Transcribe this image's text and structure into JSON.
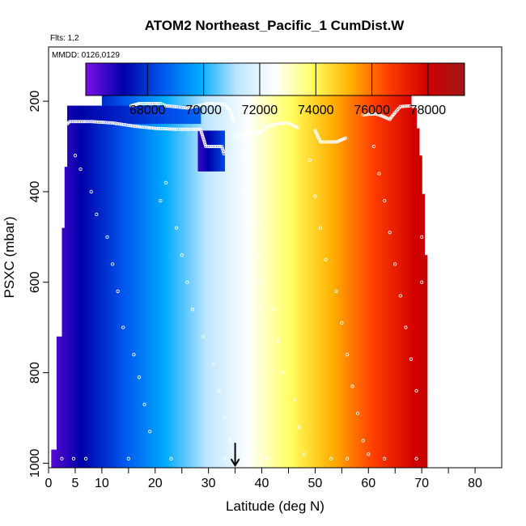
{
  "chart_data": {
    "type": "heatmap",
    "title": "ATOM2 Northeast_Pacific_1 CumDist.W",
    "flights_label": "Flts: 1,2",
    "date_label": "MMDD: 0126,0129",
    "xlabel": "Latitude (deg N)",
    "ylabel": "PSXC (mbar)",
    "xlim": [
      0,
      85
    ],
    "ylim": [
      1010,
      80
    ],
    "y_reversed": true,
    "x_ticks": [
      0,
      5,
      10,
      20,
      30,
      40,
      50,
      60,
      70,
      80
    ],
    "x_minor_ticks": [
      15,
      25,
      35,
      45,
      55,
      65,
      75
    ],
    "y_ticks": [
      200,
      400,
      600,
      800,
      1000
    ],
    "colorbar": {
      "range": [
        65800,
        79300
      ],
      "ticks": [
        68000,
        70000,
        72000,
        74000,
        76000,
        78000
      ],
      "palette": [
        "#7b10e8",
        "#0000a8",
        "#0055ee",
        "#00aaff",
        "#bfe6ff",
        "#ffffff",
        "#ffff60",
        "#ffb000",
        "#ff3c00",
        "#d00000",
        "#a01818"
      ]
    },
    "field": {
      "description": "CumDist.W colored by latitude",
      "lat_start": 0.5,
      "lat_end": 71,
      "value_at_lat_start": 66200,
      "value_per_deg": 172,
      "column_profile": [
        [
          0.5,
          970,
          1010
        ],
        [
          1.5,
          720,
          1010
        ],
        [
          2.5,
          480,
          1010
        ],
        [
          3.0,
          345,
          1010
        ],
        [
          3.5,
          210,
          1010
        ],
        [
          10,
          175,
          1010
        ],
        [
          67.5,
          175,
          1010
        ],
        [
          68,
          215,
          1010
        ],
        [
          69,
          260,
          1010
        ],
        [
          69.5,
          320,
          1010
        ],
        [
          70,
          405,
          1010
        ],
        [
          70.5,
          540,
          1010
        ],
        [
          71,
          900,
          1010
        ]
      ],
      "anomaly_rect": {
        "lat": [
          3.5,
          28.5
        ],
        "p": [
          210,
          250
        ],
        "value": 67000
      },
      "anomaly_rect2": {
        "lat": [
          28,
          33
        ],
        "p": [
          265,
          355
        ],
        "value": 66500
      }
    },
    "flight_tracks": [
      [
        [
          3.5,
          250
        ],
        [
          4,
          245
        ],
        [
          8,
          245
        ],
        [
          12,
          248
        ],
        [
          16,
          255
        ],
        [
          20,
          260
        ],
        [
          24,
          262
        ],
        [
          27.5,
          262
        ],
        [
          28.5,
          262
        ],
        [
          29.5,
          300
        ],
        [
          32.5,
          300
        ],
        [
          33,
          320
        ]
      ],
      [
        [
          15.5,
          210
        ],
        [
          17,
          205
        ],
        [
          21,
          205
        ],
        [
          22,
          210
        ],
        [
          26,
          215
        ],
        [
          28,
          210
        ],
        [
          30,
          205
        ],
        [
          33,
          207
        ],
        [
          34,
          220
        ],
        [
          35,
          250
        ]
      ],
      [
        [
          35,
          280
        ],
        [
          36,
          275
        ],
        [
          38,
          273
        ],
        [
          40,
          268
        ],
        [
          41,
          255
        ],
        [
          43,
          250
        ],
        [
          45,
          248
        ],
        [
          47,
          260
        ]
      ],
      [
        [
          50,
          265
        ],
        [
          51,
          290
        ],
        [
          54,
          290
        ],
        [
          56,
          280
        ]
      ],
      [
        [
          59,
          230
        ],
        [
          61,
          228
        ],
        [
          62,
          230
        ],
        [
          64,
          240
        ],
        [
          65,
          225
        ],
        [
          66,
          212
        ],
        [
          68,
          210
        ]
      ]
    ],
    "scatter_points": [
      [
        2.5,
        990
      ],
      [
        4.7,
        990
      ],
      [
        7.0,
        990
      ],
      [
        15.0,
        990
      ],
      [
        23,
        990
      ],
      [
        33,
        990
      ],
      [
        41,
        990
      ],
      [
        53,
        990
      ],
      [
        56,
        990
      ],
      [
        63,
        990
      ],
      [
        69,
        990
      ],
      [
        5,
        320
      ],
      [
        6,
        350
      ],
      [
        8,
        400
      ],
      [
        9,
        450
      ],
      [
        11,
        500
      ],
      [
        12,
        560
      ],
      [
        13,
        620
      ],
      [
        14,
        700
      ],
      [
        16,
        760
      ],
      [
        17,
        810
      ],
      [
        18,
        870
      ],
      [
        19,
        930
      ],
      [
        21,
        420
      ],
      [
        22,
        380
      ],
      [
        24,
        480
      ],
      [
        25,
        540
      ],
      [
        26,
        600
      ],
      [
        27,
        660
      ],
      [
        29,
        720
      ],
      [
        31,
        780
      ],
      [
        32,
        840
      ],
      [
        33,
        900
      ],
      [
        34,
        950
      ],
      [
        36,
        320
      ],
      [
        37,
        400
      ],
      [
        38,
        470
      ],
      [
        39,
        540
      ],
      [
        40,
        600
      ],
      [
        42,
        660
      ],
      [
        43,
        730
      ],
      [
        44,
        800
      ],
      [
        46,
        860
      ],
      [
        47,
        920
      ],
      [
        48,
        980
      ],
      [
        49,
        330
      ],
      [
        50,
        410
      ],
      [
        51,
        480
      ],
      [
        52,
        550
      ],
      [
        54,
        620
      ],
      [
        55,
        690
      ],
      [
        56,
        760
      ],
      [
        57,
        830
      ],
      [
        58,
        890
      ],
      [
        59,
        950
      ],
      [
        60,
        980
      ],
      [
        61,
        300
      ],
      [
        62,
        360
      ],
      [
        63,
        420
      ],
      [
        64,
        490
      ],
      [
        65,
        560
      ],
      [
        66,
        630
      ],
      [
        67,
        700
      ],
      [
        68,
        770
      ],
      [
        69,
        840
      ],
      [
        70,
        500
      ],
      [
        70,
        600
      ]
    ],
    "arrow_marker": {
      "lat": 35,
      "p_from": 955,
      "p_to": 1005
    }
  }
}
